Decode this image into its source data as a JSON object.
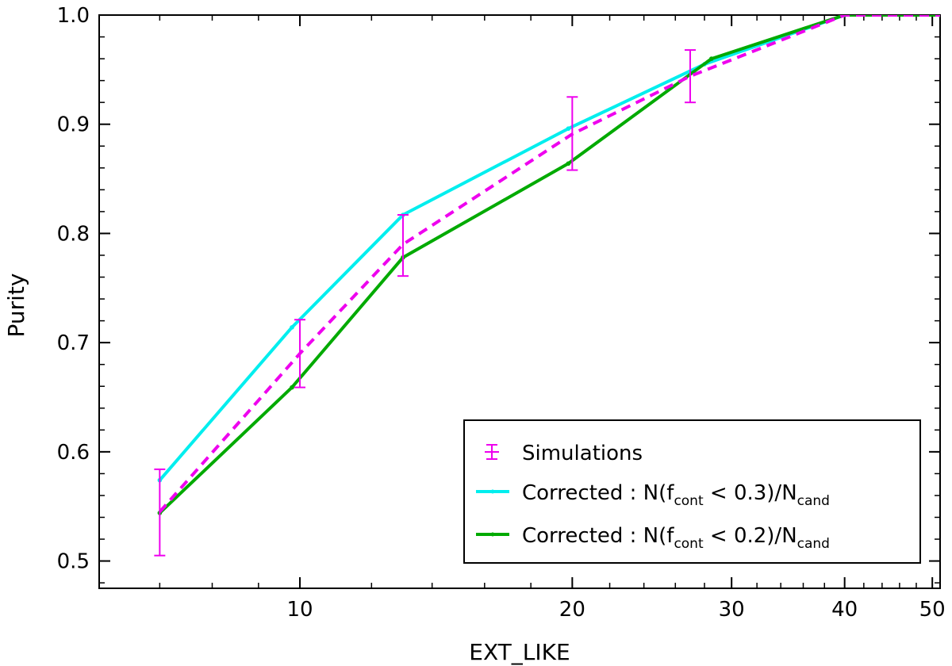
{
  "chart_data": {
    "type": "line",
    "xlabel": "EXT_LIKE",
    "ylabel": "Purity",
    "xscale": "log",
    "xlim": [
      6,
      51
    ],
    "ylim": [
      0.475,
      1.0
    ],
    "grid": false,
    "legend_position": "lower-right",
    "x_tick_labels": [
      {
        "value": 10,
        "label": "10"
      },
      {
        "value": 20,
        "label": "20"
      },
      {
        "value": 30,
        "label": "30"
      },
      {
        "value": 40,
        "label": "40"
      },
      {
        "value": 50,
        "label": "50"
      }
    ],
    "y_tick_labels": [
      {
        "value": 0.5,
        "label": "0.5"
      },
      {
        "value": 0.6,
        "label": "0.6"
      },
      {
        "value": 0.7,
        "label": "0.7"
      },
      {
        "value": 0.8,
        "label": "0.8"
      },
      {
        "value": 0.9,
        "label": "0.9"
      },
      {
        "value": 1.0,
        "label": "1.0"
      }
    ],
    "series": [
      {
        "name": "Simulations",
        "style": "dashed-errorbar",
        "color": "#ee00ee",
        "x": [
          7,
          10,
          13,
          20,
          27,
          40,
          51
        ],
        "y": [
          0.545,
          0.69,
          0.79,
          0.891,
          0.944,
          1.0,
          1.0
        ],
        "yerr_low": [
          0.505,
          0.659,
          0.761,
          0.858,
          0.92,
          1.0,
          1.0
        ],
        "yerr_high": [
          0.584,
          0.721,
          0.817,
          0.925,
          0.968,
          1.0,
          1.0
        ]
      },
      {
        "name_parts": {
          "prefix": "Corrected : N(f",
          "sub1": "cont",
          "mid": " < 0.3)/N",
          "sub2": "cand"
        },
        "color": "#00eeee",
        "x": [
          7,
          9.8,
          13,
          19.8,
          28,
          40,
          51
        ],
        "y": [
          0.574,
          0.714,
          0.817,
          0.896,
          0.955,
          1.0,
          1.0
        ]
      },
      {
        "name_parts": {
          "prefix": "Corrected : N(f",
          "sub1": "cont",
          "mid": " < 0.2)/N",
          "sub2": "cand"
        },
        "color": "#00aa00",
        "x": [
          7,
          9.8,
          13,
          19.8,
          28.5,
          40,
          51
        ],
        "y": [
          0.544,
          0.659,
          0.778,
          0.864,
          0.96,
          1.0,
          1.0
        ]
      }
    ]
  }
}
